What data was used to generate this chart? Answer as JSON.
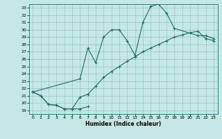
{
  "xlabel": "Humidex (Indice chaleur)",
  "xlim": [
    -0.5,
    23.5
  ],
  "ylim": [
    18.5,
    33.5
  ],
  "xticks": [
    0,
    1,
    2,
    3,
    4,
    5,
    6,
    7,
    8,
    9,
    10,
    11,
    12,
    13,
    14,
    15,
    16,
    17,
    18,
    19,
    20,
    21,
    22,
    23
  ],
  "yticks": [
    19,
    20,
    21,
    22,
    23,
    24,
    25,
    26,
    27,
    28,
    29,
    30,
    31,
    32,
    33
  ],
  "bg_color": "#c5e8e5",
  "line_color": "#1a6b6b",
  "line1_x": [
    0,
    1,
    2,
    3,
    4,
    5,
    6,
    7
  ],
  "line1_y": [
    21.5,
    21.0,
    19.8,
    19.7,
    19.2,
    19.2,
    19.2,
    19.5
  ],
  "line2_x": [
    0,
    6,
    7,
    8,
    9,
    10,
    11,
    12,
    13,
    14,
    15,
    16,
    17,
    18,
    21,
    22,
    23
  ],
  "line2_y": [
    21.5,
    23.3,
    27.5,
    25.5,
    29.0,
    30.0,
    30.0,
    28.5,
    26.5,
    31.0,
    33.2,
    33.5,
    32.3,
    30.2,
    29.2,
    29.2,
    28.8
  ],
  "line3_x": [
    0,
    1,
    2,
    3,
    4,
    5,
    6,
    7,
    8,
    9,
    10,
    11,
    12,
    13,
    14,
    15,
    16,
    17,
    18,
    19,
    20,
    21,
    22,
    23
  ],
  "line3_y": [
    21.5,
    21.0,
    19.8,
    19.7,
    19.2,
    19.2,
    20.8,
    21.2,
    22.3,
    23.5,
    24.3,
    25.0,
    25.7,
    26.3,
    27.0,
    27.5,
    28.0,
    28.5,
    29.0,
    29.3,
    29.6,
    29.8,
    28.8,
    28.5
  ]
}
